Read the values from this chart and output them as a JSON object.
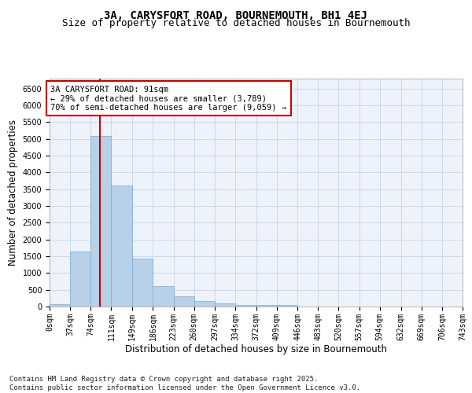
{
  "title": "3A, CARYSFORT ROAD, BOURNEMOUTH, BH1 4EJ",
  "subtitle": "Size of property relative to detached houses in Bournemouth",
  "xlabel": "Distribution of detached houses by size in Bournemouth",
  "ylabel": "Number of detached properties",
  "bar_color": "#b8d0e8",
  "bar_edge_color": "#7aaad0",
  "background_color": "#eef2fa",
  "grid_color": "#c8d4ea",
  "vline_x": 91,
  "vline_color": "#cc0000",
  "annotation_line1": "3A CARYSFORT ROAD: 91sqm",
  "annotation_line2": "← 29% of detached houses are smaller (3,789)",
  "annotation_line3": "70% of semi-detached houses are larger (9,059) →",
  "annotation_box_color": "#cc0000",
  "bin_edges": [
    0,
    37,
    74,
    111,
    149,
    186,
    223,
    260,
    297,
    334,
    372,
    409,
    446,
    483,
    520,
    557,
    594,
    632,
    669,
    706,
    743
  ],
  "bar_heights": [
    75,
    1640,
    5100,
    3600,
    1420,
    615,
    310,
    155,
    90,
    50,
    40,
    50,
    0,
    0,
    0,
    0,
    0,
    0,
    0,
    0
  ],
  "ylim": [
    0,
    6800
  ],
  "yticks": [
    0,
    500,
    1000,
    1500,
    2000,
    2500,
    3000,
    3500,
    4000,
    4500,
    5000,
    5500,
    6000,
    6500
  ],
  "tick_labels": [
    "0sqm",
    "37sqm",
    "74sqm",
    "111sqm",
    "149sqm",
    "186sqm",
    "223sqm",
    "260sqm",
    "297sqm",
    "334sqm",
    "372sqm",
    "409sqm",
    "446sqm",
    "483sqm",
    "520sqm",
    "557sqm",
    "594sqm",
    "632sqm",
    "669sqm",
    "706sqm",
    "743sqm"
  ],
  "footer_line1": "Contains HM Land Registry data © Crown copyright and database right 2025.",
  "footer_line2": "Contains public sector information licensed under the Open Government Licence v3.0.",
  "title_fontsize": 10,
  "subtitle_fontsize": 9,
  "axis_label_fontsize": 8.5,
  "tick_fontsize": 7,
  "annotation_fontsize": 7.5,
  "footer_fontsize": 6.5
}
